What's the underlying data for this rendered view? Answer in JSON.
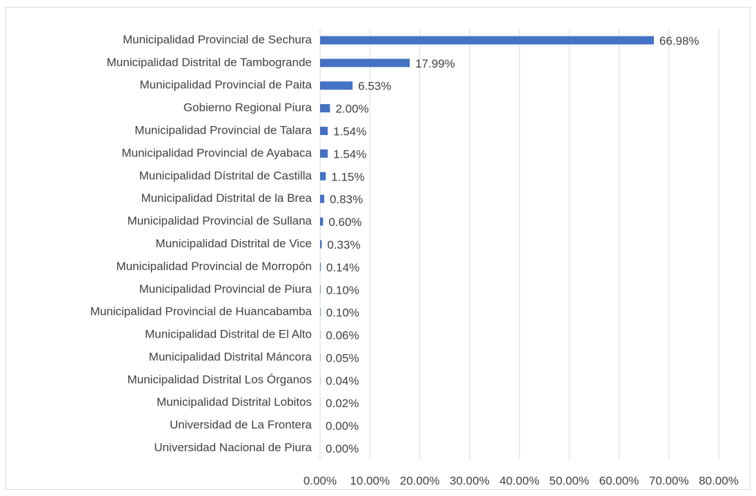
{
  "chart_data": {
    "type": "bar",
    "orientation": "horizontal",
    "color": "#4472c4",
    "grid": true,
    "categories": [
      "Municipalidad Provincial de Sechura",
      "Municipalidad Distrital de Tambogrande",
      "Municipalidad Provincial de Paita",
      "Gobierno Regional Piura",
      "Municipalidad Provincial de Talara",
      "Municipalidad Provincial de Ayabaca",
      "Municipalidad Dístrital de Castilla",
      "Municipalidad Distrital de la Brea",
      "Municipalidad Provincial de Sullana",
      "Municipalidad Distrital de Vice",
      "Municipalidad Provincial de Morropón",
      "Municipalidad Provincial de Piura",
      "Municipalidad Provincial de Huancabamba",
      "Municipalidad Distrital de El Alto",
      "Municipalidad Distrital Máncora",
      "Municipalidad Distrital Los Órganos",
      "Municipalidad Distrital Lobitos",
      "Universidad de La Frontera",
      "Universidad Nacional de Piura"
    ],
    "values": [
      66.98,
      17.99,
      6.53,
      2.0,
      1.54,
      1.54,
      1.15,
      0.83,
      0.6,
      0.33,
      0.14,
      0.1,
      0.1,
      0.06,
      0.05,
      0.04,
      0.02,
      0.0,
      0.0
    ],
    "value_labels": [
      "66.98%",
      "17.99%",
      "6.53%",
      "2.00%",
      "1.54%",
      "1.54%",
      "1.15%",
      "0.83%",
      "0.60%",
      "0.33%",
      "0.14%",
      "0.10%",
      "0.10%",
      "0.06%",
      "0.05%",
      "0.04%",
      "0.02%",
      "0.00%",
      "0.00%"
    ],
    "xlim": [
      0,
      80
    ],
    "xticks": [
      {
        "value": 0,
        "label": "0.00%"
      },
      {
        "value": 10,
        "label": "10.00%"
      },
      {
        "value": 20,
        "label": "20.00%"
      },
      {
        "value": 30,
        "label": "30.00%"
      },
      {
        "value": 40,
        "label": "40.00%"
      },
      {
        "value": 50,
        "label": "50.00%"
      },
      {
        "value": 60,
        "label": "60.00%"
      },
      {
        "value": 70,
        "label": "70.00%"
      },
      {
        "value": 80,
        "label": "80.00%"
      }
    ]
  }
}
